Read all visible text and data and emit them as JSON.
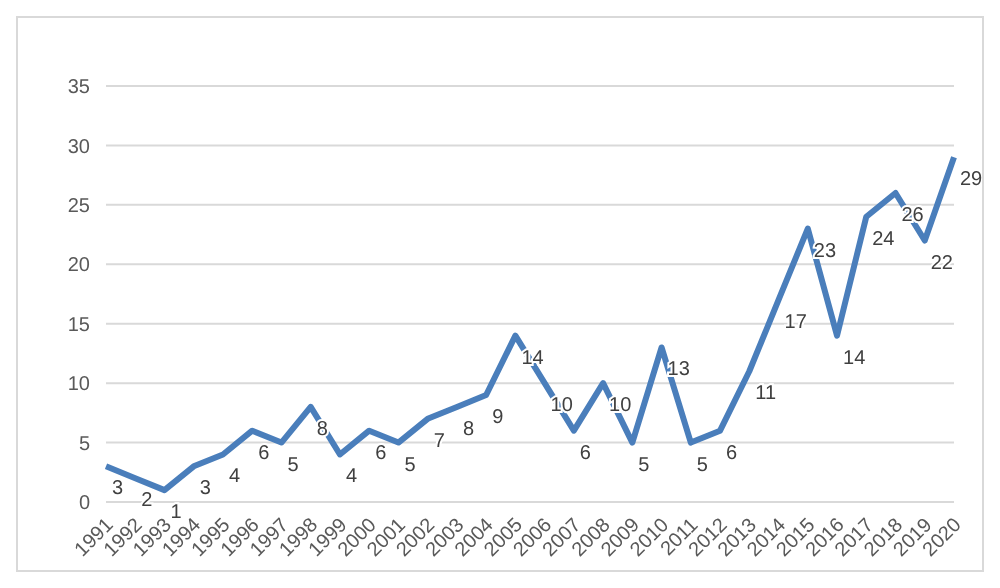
{
  "chart_data": {
    "type": "line",
    "categories": [
      "1991",
      "1992",
      "1993",
      "1994",
      "1995",
      "1996",
      "1997",
      "1998",
      "1999",
      "2000",
      "2001",
      "2002",
      "2003",
      "2004",
      "2005",
      "2006",
      "2007",
      "2008",
      "2009",
      "2010",
      "2011",
      "2012",
      "2013",
      "2014",
      "2015",
      "2016",
      "2017",
      "2018",
      "2019",
      "2020"
    ],
    "series": [
      {
        "color": "#4a7ebb",
        "values": [
          3,
          2,
          1,
          3,
          4,
          6,
          5,
          8,
          4,
          6,
          5,
          7,
          8,
          9,
          14,
          10,
          6,
          10,
          5,
          13,
          5,
          6,
          11,
          17,
          23,
          14,
          24,
          26,
          22,
          29
        ]
      }
    ],
    "ylim": [
      0,
      35
    ],
    "yticks": [
      0,
      5,
      10,
      15,
      20,
      25,
      30,
      35
    ],
    "grid": "y",
    "marker": "none",
    "line_style": "solid",
    "data_labels": true
  }
}
